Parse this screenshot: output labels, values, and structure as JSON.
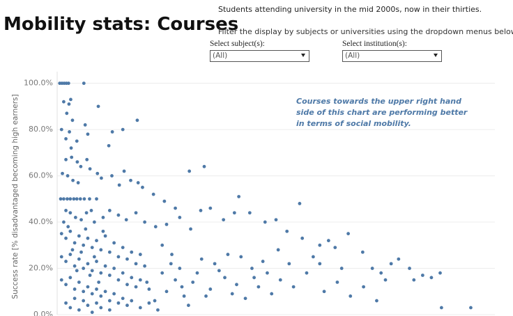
{
  "header": {
    "title": "Mobility stats: Courses",
    "subtitle": "Students attending university in the mid 2000s, now in their thirties.",
    "instructions": "Filter the display by subjects or universities using the dropdown menus below."
  },
  "filters": [
    {
      "label": "Select subject(s):",
      "value": "(All)"
    },
    {
      "label": "Select institution(s):",
      "value": "(All)"
    }
  ],
  "chart_data": {
    "type": "scatter",
    "annotation": "Courses towards the upper right hand side of this chart are performing better in terms of social mobility.",
    "y_label": "Success rate [% disadvantaged becoming high earners]",
    "color": "#4e79a7",
    "grid": true,
    "xlim": [
      0,
      100
    ],
    "ylim": [
      0,
      105
    ],
    "yticks": [
      {
        "value": 0,
        "label": "0.0%"
      },
      {
        "value": 20,
        "label": "20.0%"
      },
      {
        "value": 40,
        "label": "40.0%"
      },
      {
        "value": 60,
        "label": "60.0%"
      },
      {
        "value": 80,
        "label": "80.0%"
      },
      {
        "value": 100,
        "label": "100.0%"
      }
    ],
    "x": [
      0.6,
      1.1,
      1.6,
      2.1,
      2.6,
      6.1,
      1.5,
      2.7,
      3.1,
      2.2,
      3.5,
      9.4,
      1,
      2.8,
      2,
      3.2,
      4.5,
      6.4,
      7,
      12.6,
      15,
      18.3,
      11.8,
      2,
      3.3,
      4.6,
      5.4,
      6.8,
      7.5,
      1.2,
      2.4,
      3.6,
      4.8,
      9.2,
      10.1,
      12.5,
      14.2,
      15.3,
      16.8,
      18.5,
      19.5,
      22,
      24.5,
      27,
      30.2,
      33.6,
      0.8,
      1.5,
      2.3,
      3,
      3.8,
      4.5,
      5.3,
      6.2,
      7.4,
      9,
      2,
      3,
      4.2,
      5.5,
      6.7,
      7.8,
      8.5,
      10.5,
      12,
      14,
      15.8,
      18,
      20,
      22.5,
      25,
      28,
      30.5,
      32.8,
      35,
      38,
      40.5,
      41.5,
      44,
      47.5,
      55.4,
      50,
      52.5,
      56,
      60,
      62,
      63.5,
      66.5,
      69.8,
      72,
      74,
      76.3,
      78,
      80.5,
      81.5,
      83.5,
      85.5,
      87.5,
      87.8,
      94.5,
      58.5,
      53,
      50.5,
      48,
      46,
      44.5,
      42,
      40,
      38.3,
      36,
      34,
      32,
      30,
      28.5,
      26.2,
      24,
      22.3,
      20.5,
      1,
      2,
      3,
      4,
      5,
      6,
      7,
      8,
      9,
      10,
      11,
      12,
      13,
      14,
      15,
      16,
      17,
      18,
      19,
      20,
      1,
      2,
      3,
      4,
      5,
      6,
      7,
      8,
      9,
      10,
      11,
      12,
      13,
      14,
      15,
      16,
      17,
      18,
      19,
      21,
      1,
      2,
      3,
      4,
      5,
      6,
      7,
      8,
      9,
      10,
      11,
      12,
      13,
      14,
      15,
      16,
      17,
      19,
      21,
      23,
      2,
      3,
      4,
      5,
      6,
      7,
      8,
      9,
      10,
      12,
      1.5,
      2.5,
      3.5,
      4.5,
      5.5,
      6.5,
      7.5,
      8.5,
      9.5,
      10.5,
      24,
      25,
      26,
      27,
      28,
      29,
      31,
      33,
      35,
      37,
      39,
      41,
      43,
      45,
      47,
      49,
      51,
      54,
      57,
      61,
      64,
      67,
      70,
      73,
      60,
      65,
      75
    ],
    "values": [
      100,
      100,
      100,
      100,
      100,
      100,
      92,
      91,
      93,
      87,
      84,
      90,
      80,
      79,
      76,
      72,
      75,
      82,
      78,
      79,
      80,
      84,
      73,
      67,
      68,
      66,
      64,
      67,
      63,
      61,
      60,
      58,
      57,
      61,
      59,
      60,
      56,
      62,
      58,
      57,
      55,
      52,
      49,
      46,
      62,
      64,
      50,
      50,
      50,
      50,
      50,
      50,
      50,
      50,
      50,
      50,
      45,
      44,
      42,
      41,
      44,
      45,
      40,
      42,
      45,
      43,
      41,
      44,
      40,
      38,
      39,
      42,
      37,
      45,
      46,
      41,
      44,
      51,
      44,
      40,
      48,
      41,
      36,
      33,
      30,
      32,
      29,
      35,
      27,
      20,
      18,
      22,
      24,
      20,
      15,
      17,
      16,
      18,
      3,
      3,
      25,
      22,
      28,
      18,
      12,
      20,
      25,
      9,
      16,
      22,
      8,
      18,
      4,
      12,
      26,
      30,
      6,
      14,
      35,
      33,
      36,
      31,
      34,
      30,
      33,
      29,
      32,
      28,
      34,
      27,
      31,
      25,
      29,
      24,
      27,
      22,
      26,
      21,
      25,
      23,
      26,
      21,
      24,
      20,
      22,
      19,
      23,
      18,
      21,
      17,
      20,
      15,
      18,
      13,
      16,
      12,
      15,
      11,
      15,
      13,
      16,
      11,
      14,
      10,
      12,
      9,
      11,
      8,
      10,
      6,
      9,
      5,
      7,
      4,
      6,
      3,
      5,
      2,
      5,
      3,
      7,
      2,
      6,
      4,
      1,
      5,
      3,
      2,
      40,
      38,
      28,
      19,
      27,
      37,
      17,
      25,
      14,
      36,
      18,
      10,
      22,
      15,
      20,
      8,
      14,
      24,
      11,
      19,
      26,
      13,
      7,
      16,
      23,
      9,
      15,
      12,
      18,
      10,
      14,
      8,
      12,
      6,
      22,
      20,
      15
    ]
  }
}
